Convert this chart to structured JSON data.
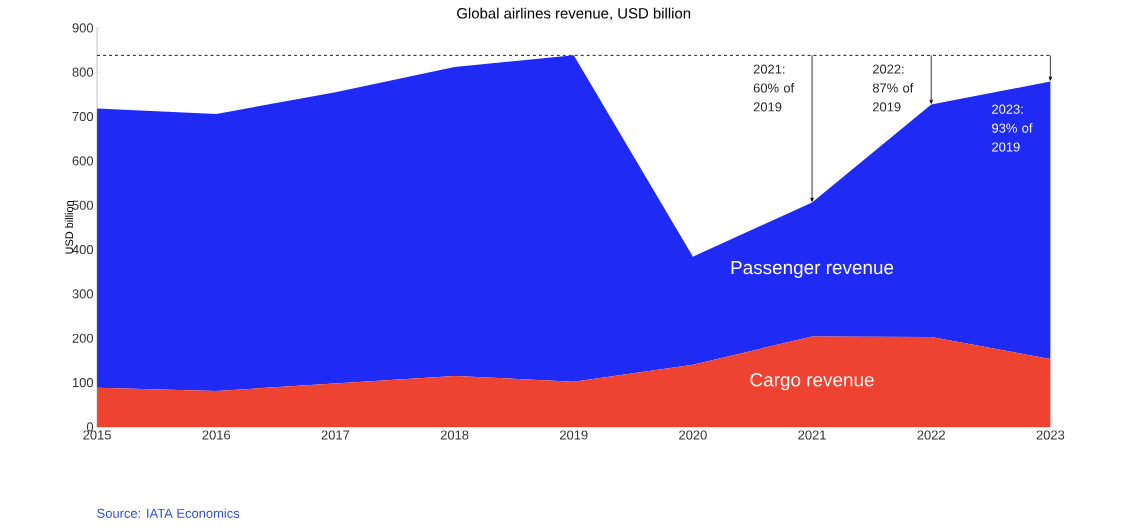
{
  "chart_data": {
    "type": "area",
    "title": "Global airlines revenue, USD billion",
    "ylabel": "USD billion",
    "stacked": true,
    "x": [
      2015,
      2016,
      2017,
      2018,
      2019,
      2020,
      2021,
      2022,
      2023
    ],
    "series": [
      {
        "name": "Cargo revenue",
        "color": "#ee4330",
        "values": [
          88,
          81,
          98,
          115,
          102,
          140,
          204,
          203,
          153
        ]
      },
      {
        "name": "Passenger revenue",
        "color": "#1f2bf5",
        "values": [
          630,
          625,
          657,
          697,
          736,
          244,
          302,
          524,
          626
        ]
      }
    ],
    "xlim": [
      2015,
      2023
    ],
    "xticks": [
      2015,
      2016,
      2017,
      2018,
      2019,
      2020,
      2021,
      2022,
      2023
    ],
    "ylim": [
      0,
      900
    ],
    "yticks": [
      0,
      100,
      200,
      300,
      400,
      500,
      600,
      700,
      800,
      900
    ],
    "ref_lines": [
      {
        "axis": "y",
        "value": 838,
        "line_style": "dashed",
        "color": "#000000"
      }
    ],
    "annotations": [
      {
        "text": "2021: 60% of 2019",
        "x": 2021,
        "y": 838
      },
      {
        "text": "2022: 87% of 2019",
        "x": 2022,
        "y": 838
      },
      {
        "text": "2023: 93% of 2019",
        "x": 2023,
        "y": 779
      },
      "Source: IATA Economics"
    ],
    "legend": false
  }
}
